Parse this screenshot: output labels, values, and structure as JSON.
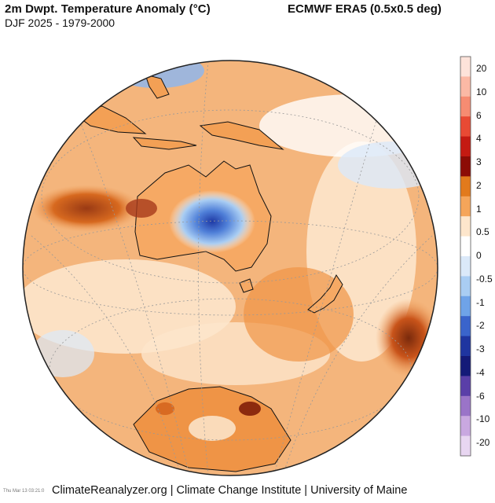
{
  "header": {
    "title": "2m Dwpt. Temperature Anomaly (°C)",
    "subtitle": "DJF 2025 - 1979-2000",
    "source": "ECMWF ERA5 (0.5x0.5 deg)"
  },
  "footer": {
    "credit": "ClimateReanalyzer.org | Climate Change Institute | University of Maine",
    "timestamp": "Thu Mar 13 03:21:0"
  },
  "colorbar": {
    "labels": [
      "20",
      "10",
      "6",
      "4",
      "3",
      "2",
      "1",
      "0.5",
      "0",
      "-0.5",
      "-1",
      "-2",
      "-3",
      "-4",
      "-6",
      "-10",
      "-20"
    ],
    "colors": [
      "#fde3da",
      "#fbb9a5",
      "#f68c72",
      "#e84a34",
      "#c41a12",
      "#8c0c06",
      "#e27a1c",
      "#f5a55a",
      "#fde6cc",
      "#ffffff",
      "#dbe9f9",
      "#a9cdf3",
      "#6fa3e8",
      "#3a64cb",
      "#1f35a0",
      "#141a78",
      "#5a3fa8",
      "#9a74c8",
      "#c9a8e0",
      "#e8d6f1"
    ]
  },
  "map": {
    "colors": {
      "ocean_warm": "#f6c49a",
      "anomaly_orange": "#f0a05c",
      "anomaly_deep": "#e27a1c",
      "anomaly_dark": "#a23d12",
      "near_zero": "#ffffff",
      "cool_light": "#bcd6f3",
      "cool_mid": "#6fa3e8",
      "cool_deep": "#2c4bb8",
      "coast": "#111111",
      "grid": "#999999"
    }
  }
}
